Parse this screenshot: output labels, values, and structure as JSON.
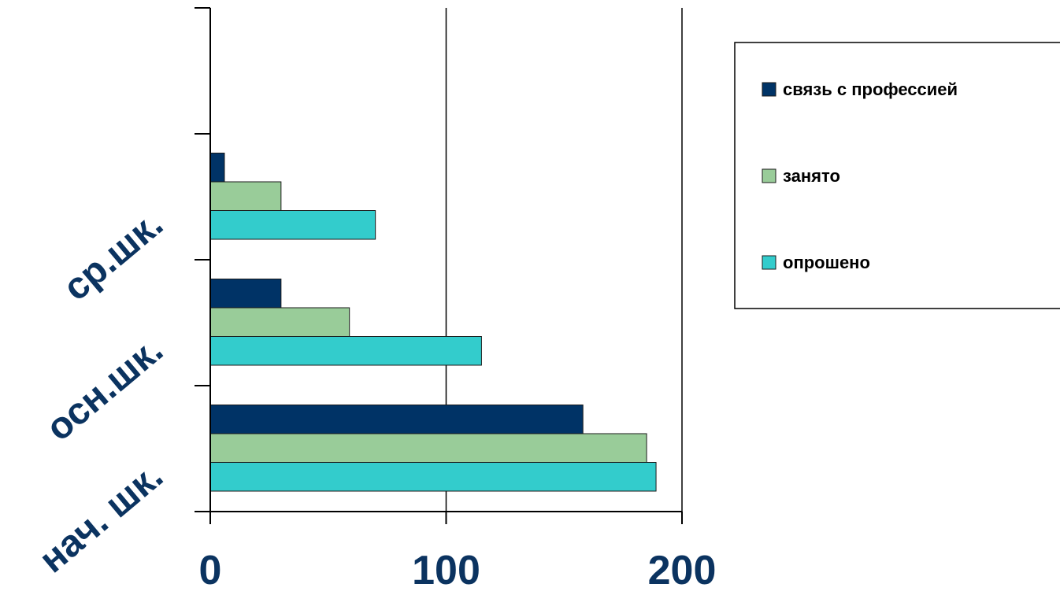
{
  "chart_data": {
    "type": "bar",
    "orientation": "horizontal",
    "categories": [
      "нач. шк.",
      "осн.шк.",
      "ср.шк.",
      ""
    ],
    "series": [
      {
        "name": "связь с профессией",
        "color": "#003366",
        "values": [
          158,
          30,
          6,
          0
        ]
      },
      {
        "name": "занято",
        "color": "#99cc99",
        "values": [
          185,
          59,
          30,
          0
        ]
      },
      {
        "name": "опрошено",
        "color": "#33cccc",
        "values": [
          189,
          115,
          70,
          0
        ]
      }
    ],
    "xlim": [
      0,
      200
    ],
    "xticks": [
      "0",
      "100",
      "200"
    ],
    "grid": "vertical",
    "legend": "right"
  }
}
